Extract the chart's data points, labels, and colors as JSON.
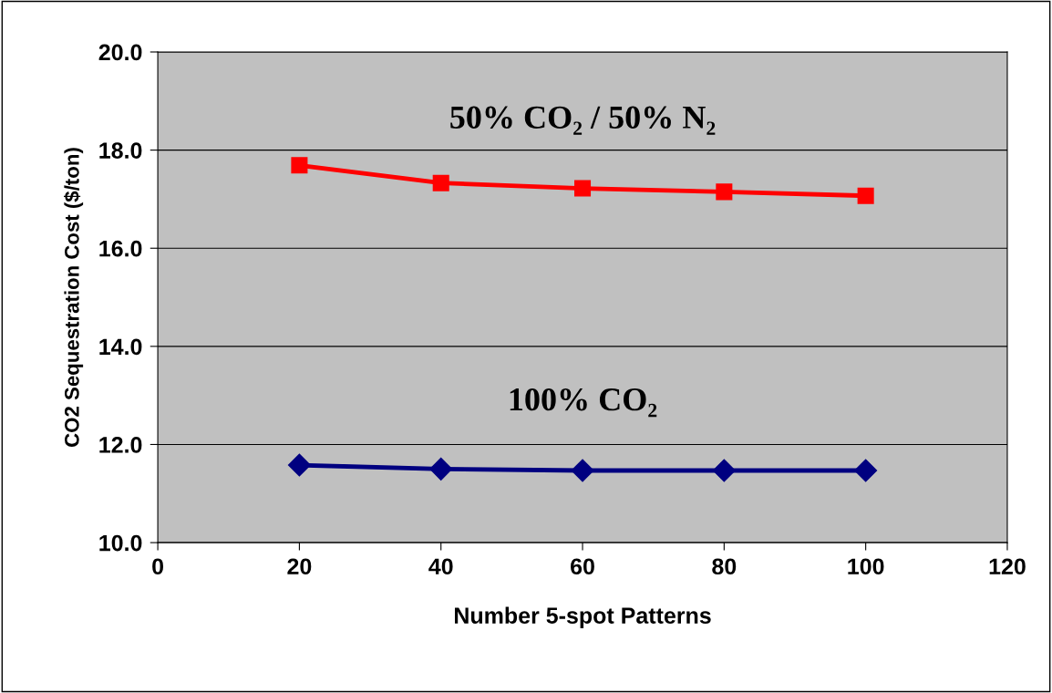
{
  "chart_data": {
    "type": "line",
    "xlabel": "Number 5-spot Patterns",
    "ylabel": "CO2 Sequestration Cost ($/ton)",
    "x": [
      20,
      40,
      60,
      80,
      100
    ],
    "series": [
      {
        "name": "50% CO₂ / 50% N₂",
        "color": "#ff0000",
        "marker": "square",
        "values": [
          17.69,
          17.33,
          17.22,
          17.15,
          17.07
        ]
      },
      {
        "name": "100% CO₂",
        "color": "#000080",
        "marker": "diamond",
        "values": [
          11.58,
          11.5,
          11.47,
          11.47,
          11.47
        ]
      }
    ],
    "xlim": [
      0,
      120
    ],
    "xticks": [
      0,
      20,
      40,
      60,
      80,
      100,
      120
    ],
    "ylim": [
      10,
      20
    ],
    "yticks": [
      {
        "value": 10,
        "label": "10.0"
      },
      {
        "value": 12,
        "label": "12.0"
      },
      {
        "value": 14,
        "label": "14.0"
      },
      {
        "value": 16,
        "label": "16.0"
      },
      {
        "value": 18,
        "label": "18.0"
      },
      {
        "value": 20,
        "label": "20.0"
      }
    ],
    "grid": "y",
    "line_style": "solid",
    "legend": false
  }
}
